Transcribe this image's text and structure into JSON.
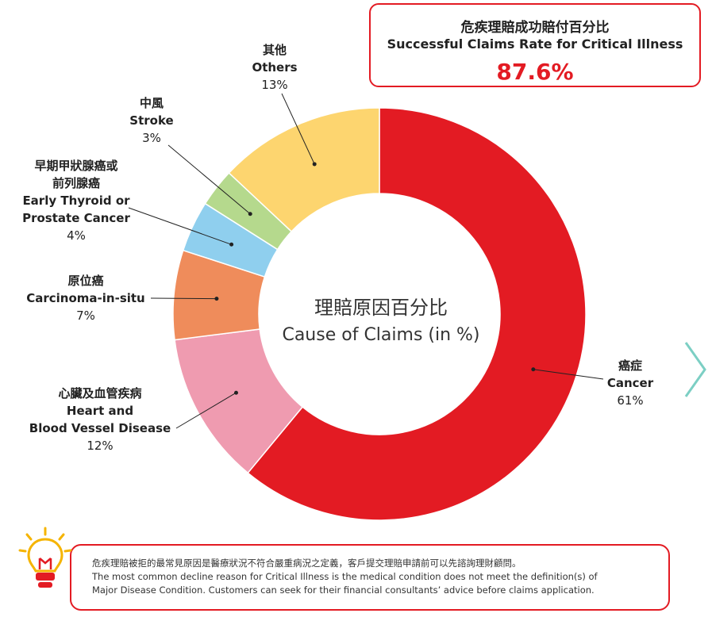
{
  "rate_box": {
    "title_zh": "危疾理賠成功賠付百分比",
    "title_en": "Successful Claims Rate for Critical Illness",
    "value": "87.6%"
  },
  "chart_data": {
    "type": "pie",
    "donut": true,
    "title_zh": "理賠原因百分比",
    "title_en": "Cause of Claims (in %)",
    "unit": "%",
    "slices": [
      {
        "name_zh": "癌症",
        "name_en": "Cancer",
        "value": 61,
        "label": "61%",
        "color": "#e31b23"
      },
      {
        "name_zh": "心臟及血管疾病",
        "name_en_lines": [
          "Heart and",
          "Blood Vessel Disease"
        ],
        "value": 12,
        "label": "12%",
        "color": "#ef9bb0"
      },
      {
        "name_zh": "原位癌",
        "name_en": "Carcinoma-in-situ",
        "value": 7,
        "label": "7%",
        "color": "#ef8c5b"
      },
      {
        "name_zh_lines": [
          "早期甲狀腺癌或",
          "前列腺癌"
        ],
        "name_en_lines": [
          "Early Thyroid or",
          "Prostate Cancer"
        ],
        "value": 4,
        "label": "4%",
        "color": "#8fcfee"
      },
      {
        "name_zh": "中風",
        "name_en": "Stroke",
        "value": 3,
        "label": "3%",
        "color": "#b5d98d"
      },
      {
        "name_zh": "其他",
        "name_en": "Others",
        "value": 13,
        "label": "13%",
        "color": "#fdd56f"
      }
    ]
  },
  "note": {
    "zh": "危疾理賠被拒的最常見原因是醫療狀況不符合嚴重病況之定義，客戶提交理賠申請前可以先諮詢理財顧問。",
    "en_line1": "The most common decline reason for Critical Illness is the medical condition does not meet the definition(s) of",
    "en_line2": "Major Disease Condition. Customers can seek for their financial consultants’ advice before claims application."
  },
  "icons": {
    "bulb": "lightbulb-icon",
    "next": "chevron-right-icon"
  },
  "colors": {
    "brand_red": "#e31b23",
    "arrow_teal": "#7ccfc4",
    "bulb_yellow": "#f5b400"
  }
}
